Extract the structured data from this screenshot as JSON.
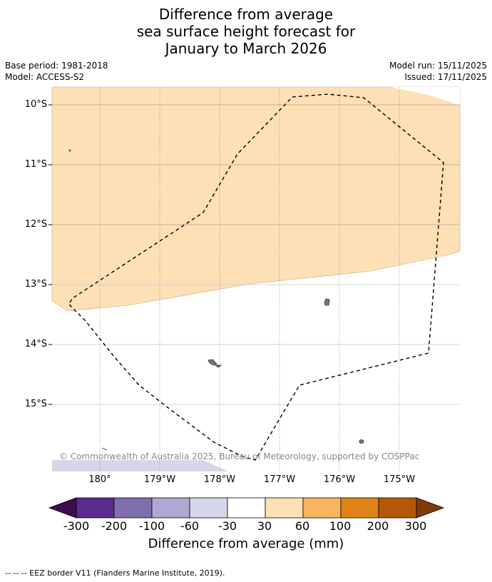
{
  "title": {
    "line1": "Difference from average",
    "line2": "sea surface height forecast for",
    "line3": "January to March 2026"
  },
  "meta": {
    "base_period": "Base period: 1981-2018",
    "model": "Model: ACCESS-S2",
    "model_run": "Model run: 15/11/2025",
    "issued": "Issued: 17/11/2025"
  },
  "map": {
    "lat_labels": [
      "10°S",
      "11°S",
      "12°S",
      "13°S",
      "14°S",
      "15°S"
    ],
    "lon_labels": [
      "180°",
      "179°W",
      "178°W",
      "177°W",
      "176°W",
      "175°W"
    ],
    "copyright": "© Commonwealth of Australia 2025, Bureau of Meteorology, supported by COSPPac"
  },
  "colorbar": {
    "ticks": [
      "-300",
      "-200",
      "-100",
      "-60",
      "-30",
      "30",
      "60",
      "100",
      "200",
      "300"
    ],
    "colors": [
      "#3b0f4f",
      "#5a2a8c",
      "#7f6fad",
      "#b0a8d2",
      "#d6d6ea",
      "#ffffff",
      "#fde0b5",
      "#f8b661",
      "#e08417",
      "#b35806",
      "#7f3b08"
    ],
    "label": "Difference from average (mm)"
  },
  "legend": {
    "eez": "--  --  -- EEZ border V11 (Flanders Marine Institute, 2019)."
  }
}
